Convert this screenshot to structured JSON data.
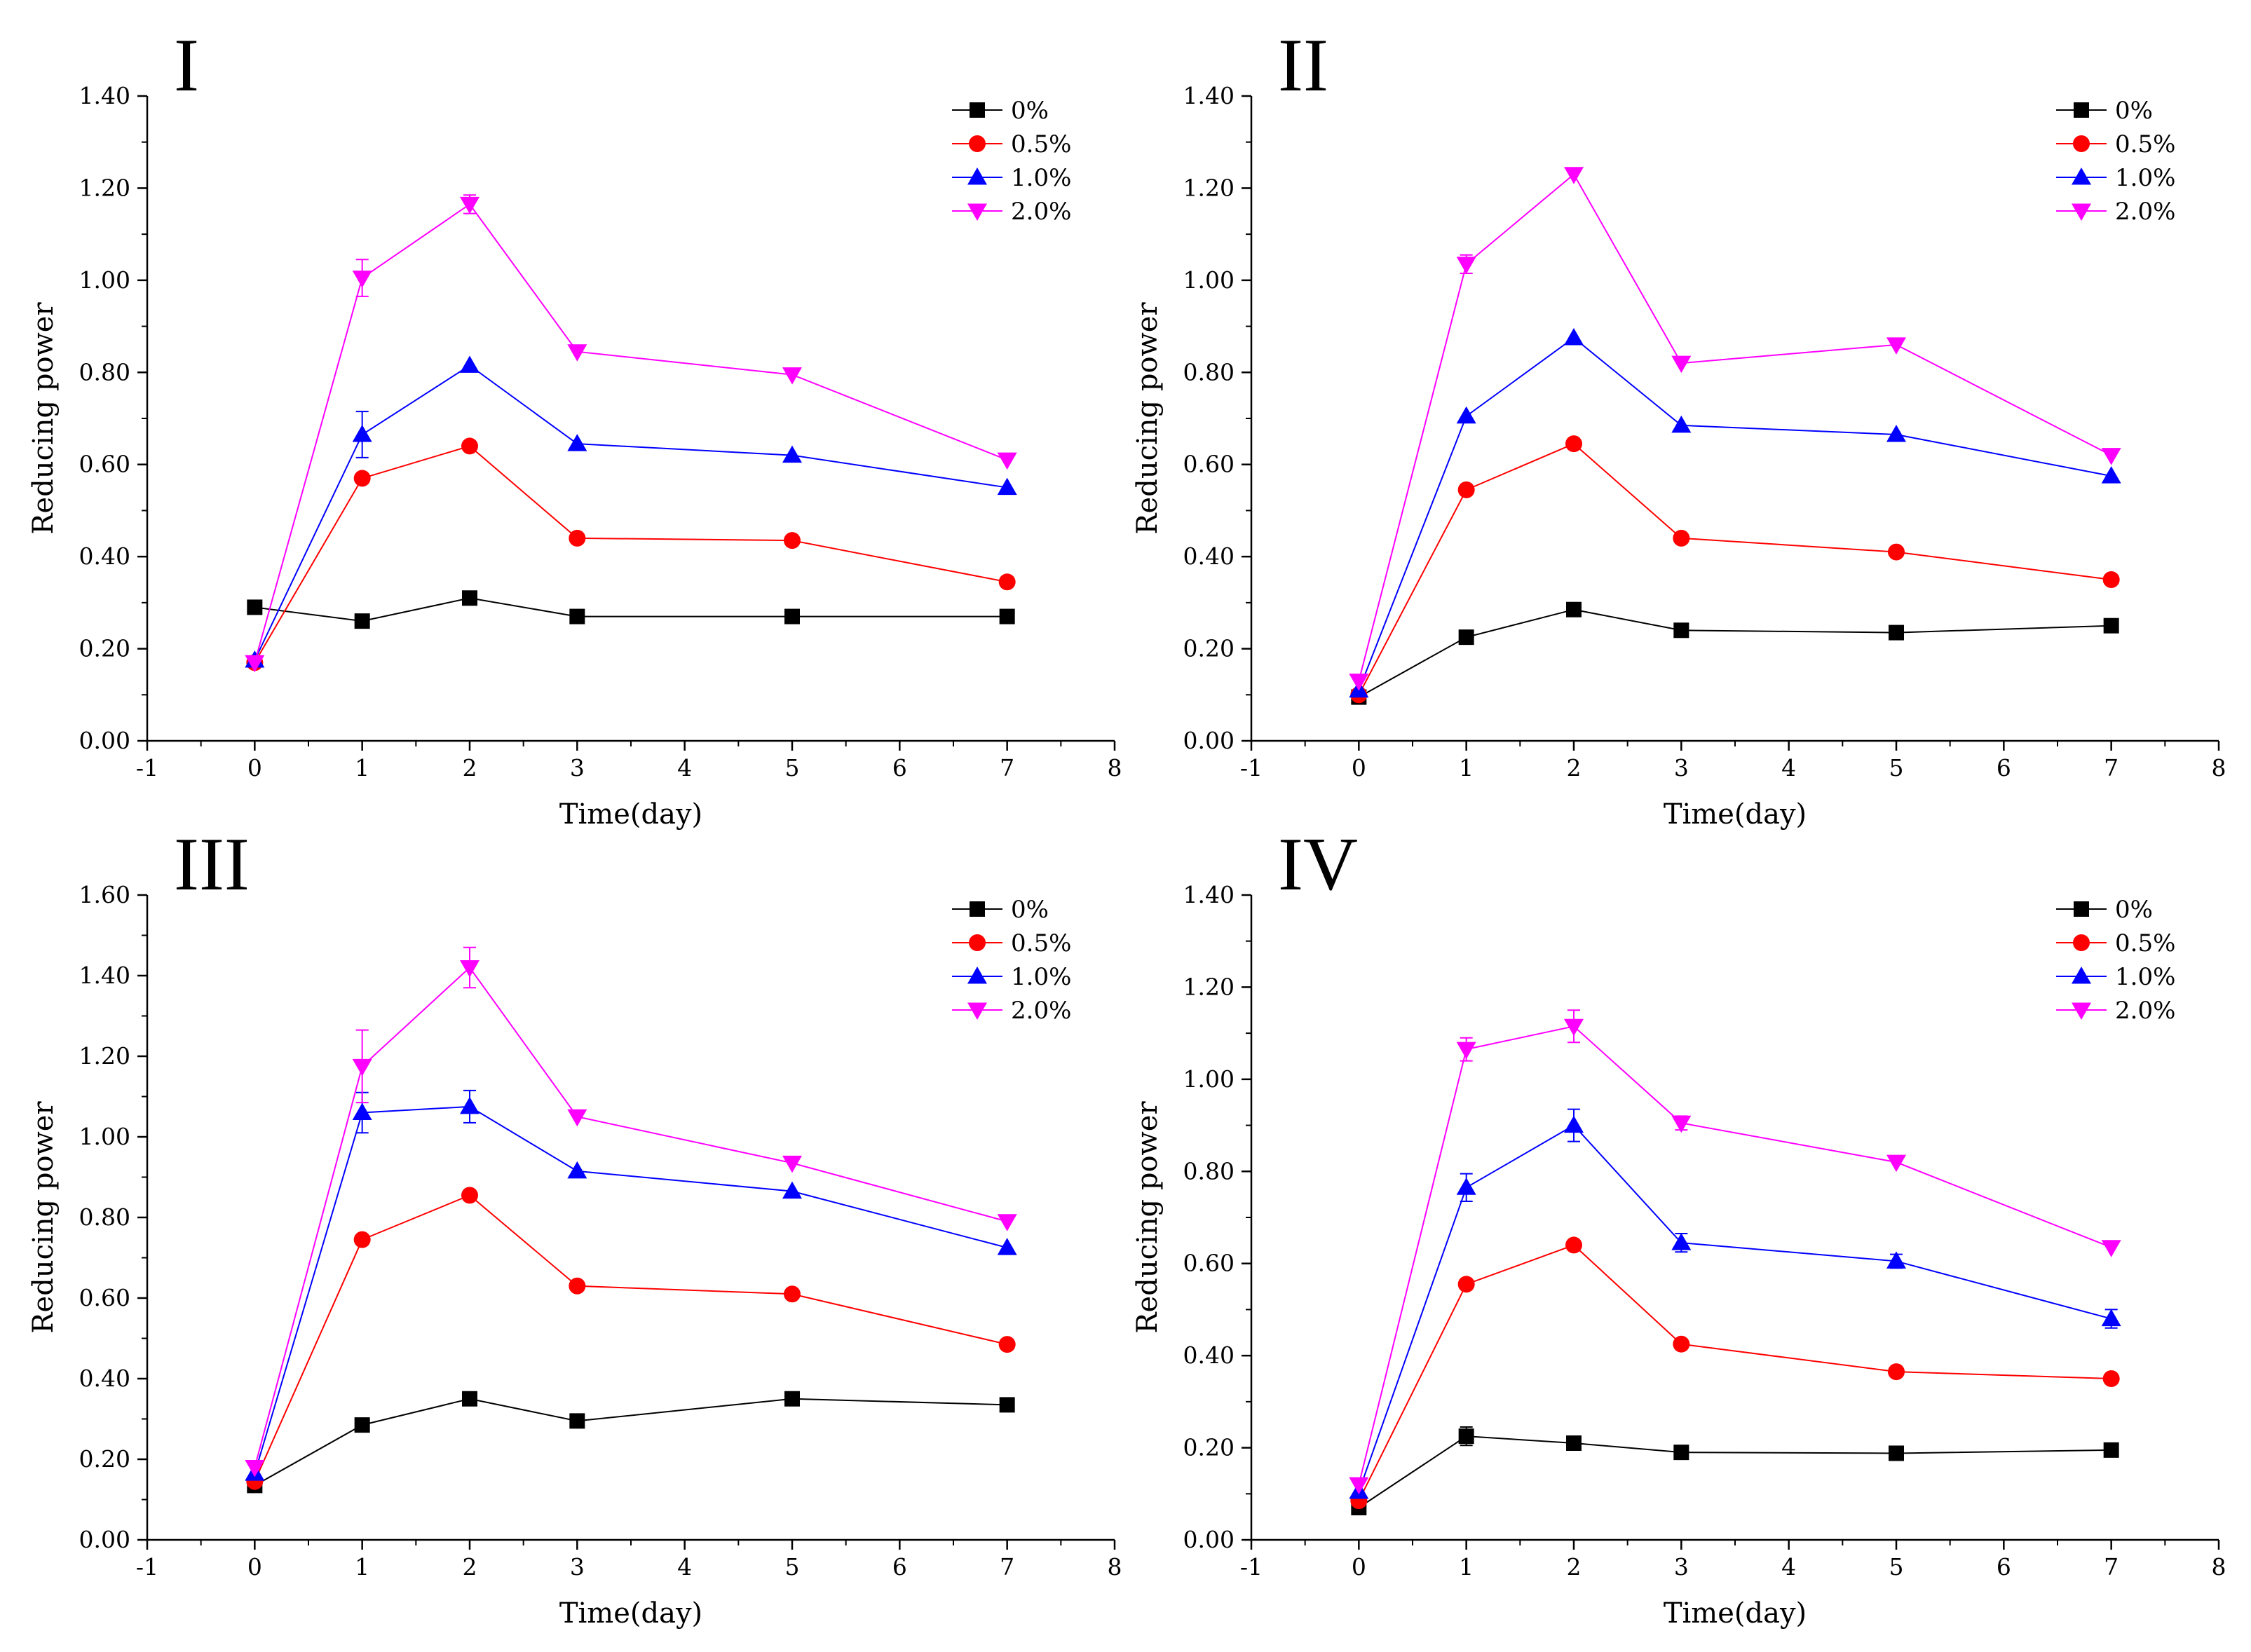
{
  "figure_title": "",
  "chart_data": [
    {
      "type": "line",
      "panel_label": "I",
      "title": "",
      "xlabel": "Time(day)",
      "ylabel": "Reducing power",
      "xlim": [
        -1,
        8
      ],
      "ylim": [
        0,
        1.4
      ],
      "xticks": [
        "-1",
        "0",
        "1",
        "2",
        "3",
        "4",
        "5",
        "6",
        "7",
        "8"
      ],
      "yticks": [
        "0.00",
        "0.20",
        "0.40",
        "0.60",
        "0.80",
        "1.00",
        "1.20",
        "1.40"
      ],
      "x": [
        0,
        1,
        2,
        3,
        5,
        7
      ],
      "legend_position": "top-right",
      "grid": false,
      "series": [
        {
          "name": "0%",
          "color": "#000000",
          "marker": "square",
          "values": [
            0.29,
            0.26,
            0.31,
            0.27,
            0.27,
            0.27
          ],
          "errors": [
            0.005,
            0.005,
            0.005,
            0.005,
            0.005,
            0.005
          ]
        },
        {
          "name": "0.5%",
          "color": "#ff0000",
          "marker": "circle",
          "values": [
            0.17,
            0.57,
            0.64,
            0.44,
            0.435,
            0.345
          ],
          "errors": [
            0.005,
            0.005,
            0.005,
            0.005,
            0.005,
            0.005
          ]
        },
        {
          "name": "1.0%",
          "color": "#0000ff",
          "marker": "triangle-up",
          "values": [
            0.175,
            0.665,
            0.815,
            0.645,
            0.62,
            0.55
          ],
          "errors": [
            0.005,
            0.05,
            0.005,
            0.005,
            0.005,
            0.005
          ]
        },
        {
          "name": "2.0%",
          "color": "#ff00ff",
          "marker": "triangle-down",
          "values": [
            0.17,
            1.005,
            1.165,
            0.845,
            0.795,
            0.61
          ],
          "errors": [
            0.005,
            0.04,
            0.02,
            0.005,
            0.005,
            0.005
          ]
        }
      ]
    },
    {
      "type": "line",
      "panel_label": "II",
      "title": "",
      "xlabel": "Time(day)",
      "ylabel": "Reducing power",
      "xlim": [
        -1,
        8
      ],
      "ylim": [
        0,
        1.4
      ],
      "xticks": [
        "-1",
        "0",
        "1",
        "2",
        "3",
        "4",
        "5",
        "6",
        "7",
        "8"
      ],
      "yticks": [
        "0.00",
        "0.20",
        "0.40",
        "0.60",
        "0.80",
        "1.00",
        "1.20",
        "1.40"
      ],
      "x": [
        0,
        1,
        2,
        3,
        5,
        7
      ],
      "legend_position": "top-right",
      "grid": false,
      "series": [
        {
          "name": "0%",
          "color": "#000000",
          "marker": "square",
          "values": [
            0.095,
            0.225,
            0.285,
            0.24,
            0.235,
            0.25
          ],
          "errors": [
            0.005,
            0.005,
            0.005,
            0.005,
            0.005,
            0.005
          ]
        },
        {
          "name": "0.5%",
          "color": "#ff0000",
          "marker": "circle",
          "values": [
            0.1,
            0.545,
            0.645,
            0.44,
            0.41,
            0.35
          ],
          "errors": [
            0.005,
            0.005,
            0.005,
            0.005,
            0.005,
            0.005
          ]
        },
        {
          "name": "1.0%",
          "color": "#0000ff",
          "marker": "triangle-up",
          "values": [
            0.11,
            0.705,
            0.875,
            0.685,
            0.665,
            0.575
          ],
          "errors": [
            0.005,
            0.005,
            0.005,
            0.005,
            0.005,
            0.005
          ]
        },
        {
          "name": "2.0%",
          "color": "#ff00ff",
          "marker": "triangle-down",
          "values": [
            0.13,
            1.035,
            1.23,
            0.82,
            0.86,
            0.62
          ],
          "errors": [
            0.005,
            0.02,
            0.005,
            0.005,
            0.005,
            0.005
          ]
        }
      ]
    },
    {
      "type": "line",
      "panel_label": "III",
      "title": "",
      "xlabel": "Time(day)",
      "ylabel": "Reducing power",
      "xlim": [
        -1,
        8
      ],
      "ylim": [
        0,
        1.6
      ],
      "xticks": [
        "-1",
        "0",
        "1",
        "2",
        "3",
        "4",
        "5",
        "6",
        "7",
        "8"
      ],
      "yticks": [
        "0.00",
        "0.20",
        "0.40",
        "0.60",
        "0.80",
        "1.00",
        "1.20",
        "1.40",
        "1.60"
      ],
      "x": [
        0,
        1,
        2,
        3,
        5,
        7
      ],
      "legend_position": "top-right",
      "grid": false,
      "series": [
        {
          "name": "0%",
          "color": "#000000",
          "marker": "square",
          "values": [
            0.135,
            0.285,
            0.35,
            0.295,
            0.35,
            0.335
          ],
          "errors": [
            0.005,
            0.005,
            0.005,
            0.005,
            0.005,
            0.005
          ]
        },
        {
          "name": "0.5%",
          "color": "#ff0000",
          "marker": "circle",
          "values": [
            0.145,
            0.745,
            0.855,
            0.63,
            0.61,
            0.485
          ],
          "errors": [
            0.005,
            0.005,
            0.005,
            0.005,
            0.005,
            0.005
          ]
        },
        {
          "name": "1.0%",
          "color": "#0000ff",
          "marker": "triangle-up",
          "values": [
            0.165,
            1.06,
            1.075,
            0.915,
            0.865,
            0.725
          ],
          "errors": [
            0.005,
            0.05,
            0.04,
            0.005,
            0.005,
            0.005
          ]
        },
        {
          "name": "2.0%",
          "color": "#ff00ff",
          "marker": "triangle-down",
          "values": [
            0.18,
            1.175,
            1.42,
            1.05,
            0.935,
            0.79
          ],
          "errors": [
            0.005,
            0.09,
            0.05,
            0.005,
            0.005,
            0.005
          ]
        }
      ]
    },
    {
      "type": "line",
      "panel_label": "IV",
      "title": "",
      "xlabel": "Time(day)",
      "ylabel": "Reducing power",
      "xlim": [
        -1,
        8
      ],
      "ylim": [
        0,
        1.4
      ],
      "xticks": [
        "-1",
        "0",
        "1",
        "2",
        "3",
        "4",
        "5",
        "6",
        "7",
        "8"
      ],
      "yticks": [
        "0.00",
        "0.20",
        "0.40",
        "0.60",
        "0.80",
        "1.00",
        "1.20",
        "1.40"
      ],
      "x": [
        0,
        1,
        2,
        3,
        5,
        7
      ],
      "legend_position": "top-right",
      "grid": false,
      "series": [
        {
          "name": "0%",
          "color": "#000000",
          "marker": "square",
          "values": [
            0.07,
            0.225,
            0.21,
            0.19,
            0.188,
            0.195
          ],
          "errors": [
            0.005,
            0.02,
            0.005,
            0.005,
            0.005,
            0.005
          ]
        },
        {
          "name": "0.5%",
          "color": "#ff0000",
          "marker": "circle",
          "values": [
            0.085,
            0.555,
            0.64,
            0.425,
            0.365,
            0.35
          ],
          "errors": [
            0.005,
            0.005,
            0.005,
            0.005,
            0.005,
            0.005
          ]
        },
        {
          "name": "1.0%",
          "color": "#0000ff",
          "marker": "triangle-up",
          "values": [
            0.105,
            0.765,
            0.9,
            0.645,
            0.605,
            0.48
          ],
          "errors": [
            0.005,
            0.03,
            0.035,
            0.02,
            0.015,
            0.02
          ]
        },
        {
          "name": "2.0%",
          "color": "#ff00ff",
          "marker": "triangle-down",
          "values": [
            0.12,
            1.065,
            1.115,
            0.905,
            0.82,
            0.635
          ],
          "errors": [
            0.005,
            0.025,
            0.035,
            0.015,
            0.005,
            0.005
          ]
        }
      ]
    }
  ]
}
